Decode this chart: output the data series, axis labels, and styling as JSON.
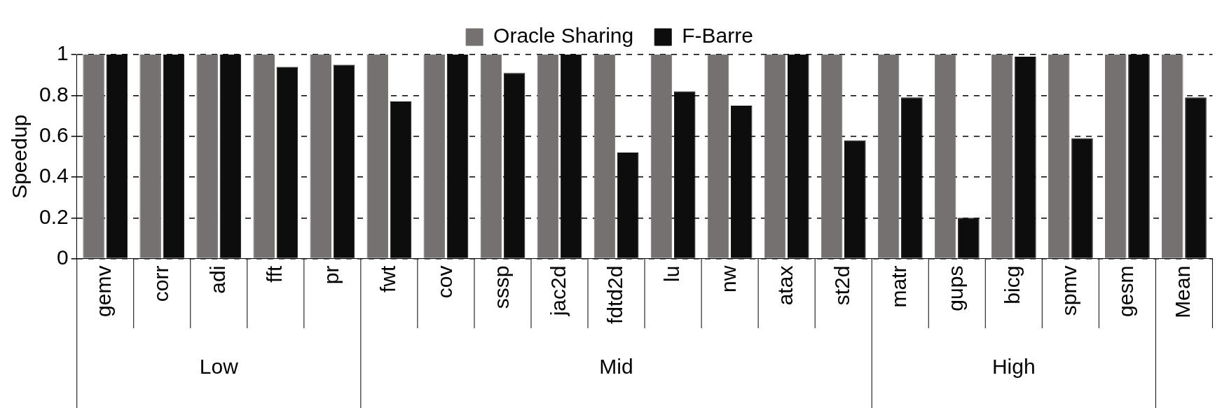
{
  "chart_data": {
    "type": "bar",
    "ylabel": "Speedup",
    "categories": [
      "gemv",
      "corr",
      "adi",
      "fft",
      "pr",
      "fwt",
      "cov",
      "sssp",
      "jac2d",
      "fdtd2d",
      "lu",
      "nw",
      "atax",
      "st2d",
      "matr",
      "gups",
      "bicg",
      "spmv",
      "gesm",
      "Mean"
    ],
    "series": [
      {
        "name": "Oracle Sharing",
        "color": "#767171",
        "values": [
          1,
          1,
          1,
          1,
          1,
          1,
          1,
          1,
          1,
          1,
          1,
          1,
          1,
          1,
          1,
          1,
          1,
          1,
          1,
          1
        ]
      },
      {
        "name": "F-Barre",
        "color": "#0d0d0d",
        "values": [
          1,
          1,
          1,
          0.94,
          0.95,
          0.77,
          1,
          0.91,
          1,
          0.52,
          0.82,
          0.75,
          1,
          0.58,
          0.79,
          0.2,
          0.99,
          0.59,
          1,
          0.79
        ]
      }
    ],
    "ylim": [
      0,
      1
    ],
    "yticks": [
      0,
      0.2,
      0.4,
      0.6,
      0.8,
      1
    ],
    "grid": "y",
    "legend": "top",
    "annotations": [
      "Low",
      "Mid",
      "High"
    ]
  }
}
